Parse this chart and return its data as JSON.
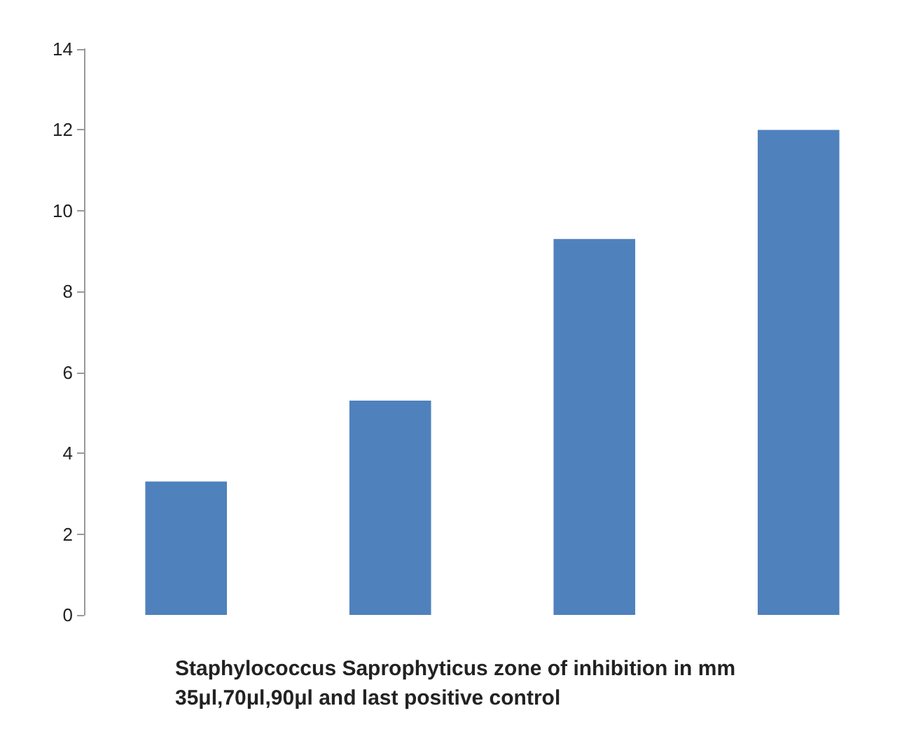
{
  "chart_data": {
    "type": "bar",
    "title": "Staphylococcus Saprophyticus zone of inhibition in mm",
    "subtitle": "35μl,70μl,90μl and last positive control",
    "categories": [
      null,
      null,
      null,
      null
    ],
    "values": [
      3.3,
      5.3,
      9.3,
      12
    ],
    "color": "#4f81bd",
    "ylim": [
      0,
      14
    ],
    "yticks": [
      0,
      2,
      4,
      6,
      8,
      10,
      12,
      14
    ],
    "grid": false
  }
}
